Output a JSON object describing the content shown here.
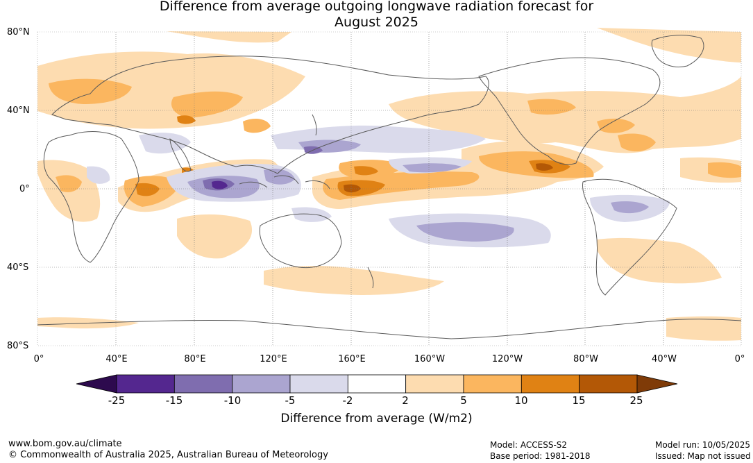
{
  "title": {
    "line1": "Difference from average outgoing longwave radiation forecast for",
    "line2": "August 2025"
  },
  "latitude_labels": [
    "80°N",
    "40°N",
    "0°",
    "40°S",
    "80°S"
  ],
  "longitude_labels": [
    "0°",
    "40°E",
    "80°E",
    "120°E",
    "160°E",
    "160°W",
    "120°W",
    "80°W",
    "40°W",
    "0°"
  ],
  "colorbar": {
    "ticks": [
      "-25",
      "-15",
      "-10",
      "-5",
      "-2",
      "2",
      "5",
      "10",
      "15",
      "25"
    ],
    "colors": {
      "below_-25": "#2d0a4e",
      "-25_-15": "#54278f",
      "-15_-10": "#7f6daf",
      "-10_-5": "#aba5d0",
      "-5_-2": "#dadaeb",
      "-2_2": "#ffffff",
      "2_5": "#fddcb0",
      "5_10": "#fbb65f",
      "10_15": "#e08214",
      "15_25": "#b35806",
      "above_25": "#7f3b08"
    },
    "label": "Difference from average (W/m2)"
  },
  "footer": {
    "website": "www.bom.gov.au/climate",
    "copyright": "© Commonwealth of Australia 2025, Australian Bureau of Meteorology",
    "model": "Model: ACCESS-S2",
    "base_period": "Base period: 1981-2018",
    "model_run": "Model run: 10/05/2025",
    "issued": "Issued: Map not issued"
  }
}
